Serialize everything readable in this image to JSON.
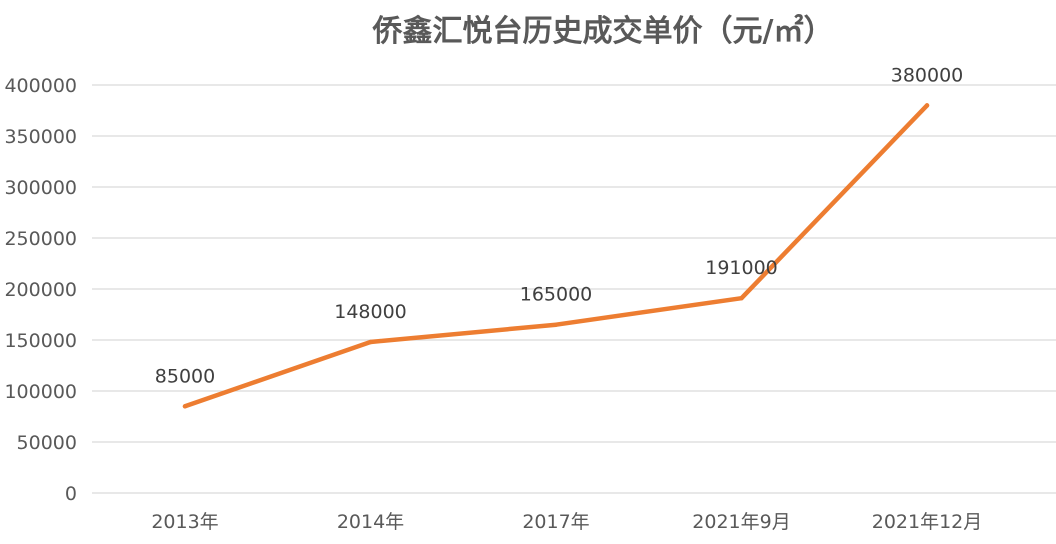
{
  "chart_data": {
    "type": "line",
    "title": "侨鑫汇悦台历史成交单价（元/㎡）",
    "categories": [
      "2013年",
      "2014年",
      "2017年",
      "2021年9月",
      "2021年12月"
    ],
    "series": [
      {
        "values": [
          85000,
          148000,
          165000,
          191000,
          380000
        ],
        "color": "#ED7D31"
      }
    ],
    "data_labels": [
      "85000",
      "148000",
      "165000",
      "191000",
      "380000"
    ],
    "ylim": [
      0,
      400000
    ],
    "yticks": [
      0,
      50000,
      100000,
      150000,
      200000,
      250000,
      300000,
      350000,
      400000
    ],
    "ytick_labels": [
      "0",
      "50000",
      "100000",
      "150000",
      "200000",
      "250000",
      "300000",
      "350000",
      "400000"
    ],
    "xlabel": "",
    "ylabel": "",
    "grid": true,
    "legend": "none",
    "gridline_color": "#D9D9D9"
  }
}
